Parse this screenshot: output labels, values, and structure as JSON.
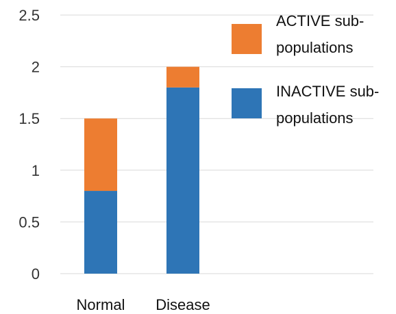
{
  "chart_data": {
    "type": "bar",
    "stacked": true,
    "title": "",
    "xlabel": "",
    "ylabel": "",
    "categories": [
      "Normal",
      "Disease"
    ],
    "series": [
      {
        "name": "INACTIVE sub-populations",
        "legend_lines": [
          "INACTIVE sub-",
          "populations"
        ],
        "values": [
          0.8,
          1.8
        ],
        "color": "#2E75B6"
      },
      {
        "name": "ACTIVE sub-populations",
        "legend_lines": [
          "ACTIVE sub-",
          "populations"
        ],
        "values": [
          0.7,
          0.2
        ],
        "color": "#ED7D31"
      }
    ],
    "ylim": [
      0,
      2.5
    ],
    "yticks": [
      0,
      0.5,
      1,
      1.5,
      2,
      2.5
    ],
    "ytick_labels": [
      "0",
      "0.5",
      "1",
      "1.5",
      "2",
      "2.5"
    ],
    "grid": true,
    "legend_position": "right"
  }
}
